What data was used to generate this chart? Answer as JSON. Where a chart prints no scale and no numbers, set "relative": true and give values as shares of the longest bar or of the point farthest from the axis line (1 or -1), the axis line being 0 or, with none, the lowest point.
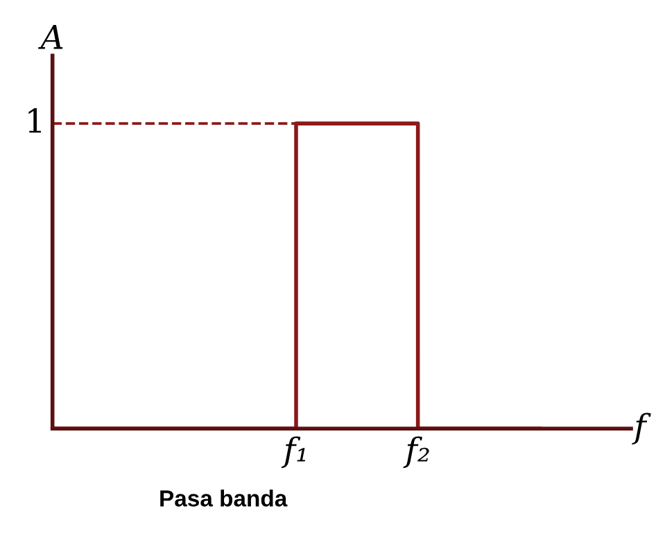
{
  "chart_data": {
    "type": "step",
    "title": "Pasa banda",
    "xlabel": "f",
    "ylabel": "A",
    "relative": true,
    "categories": [
      null,
      null,
      "f₁",
      "f₂",
      null
    ],
    "series": [
      {
        "color": "#8b1a1a",
        "values": [
          0,
          0,
          1,
          0,
          0
        ]
      }
    ],
    "ref_lines": [
      {
        "axis": "y",
        "value": 1,
        "label": "1",
        "color": "#8b1a1a",
        "line_style": "dashed"
      }
    ],
    "grid": false,
    "legend": false,
    "marker": "none",
    "line_style": "solid"
  }
}
